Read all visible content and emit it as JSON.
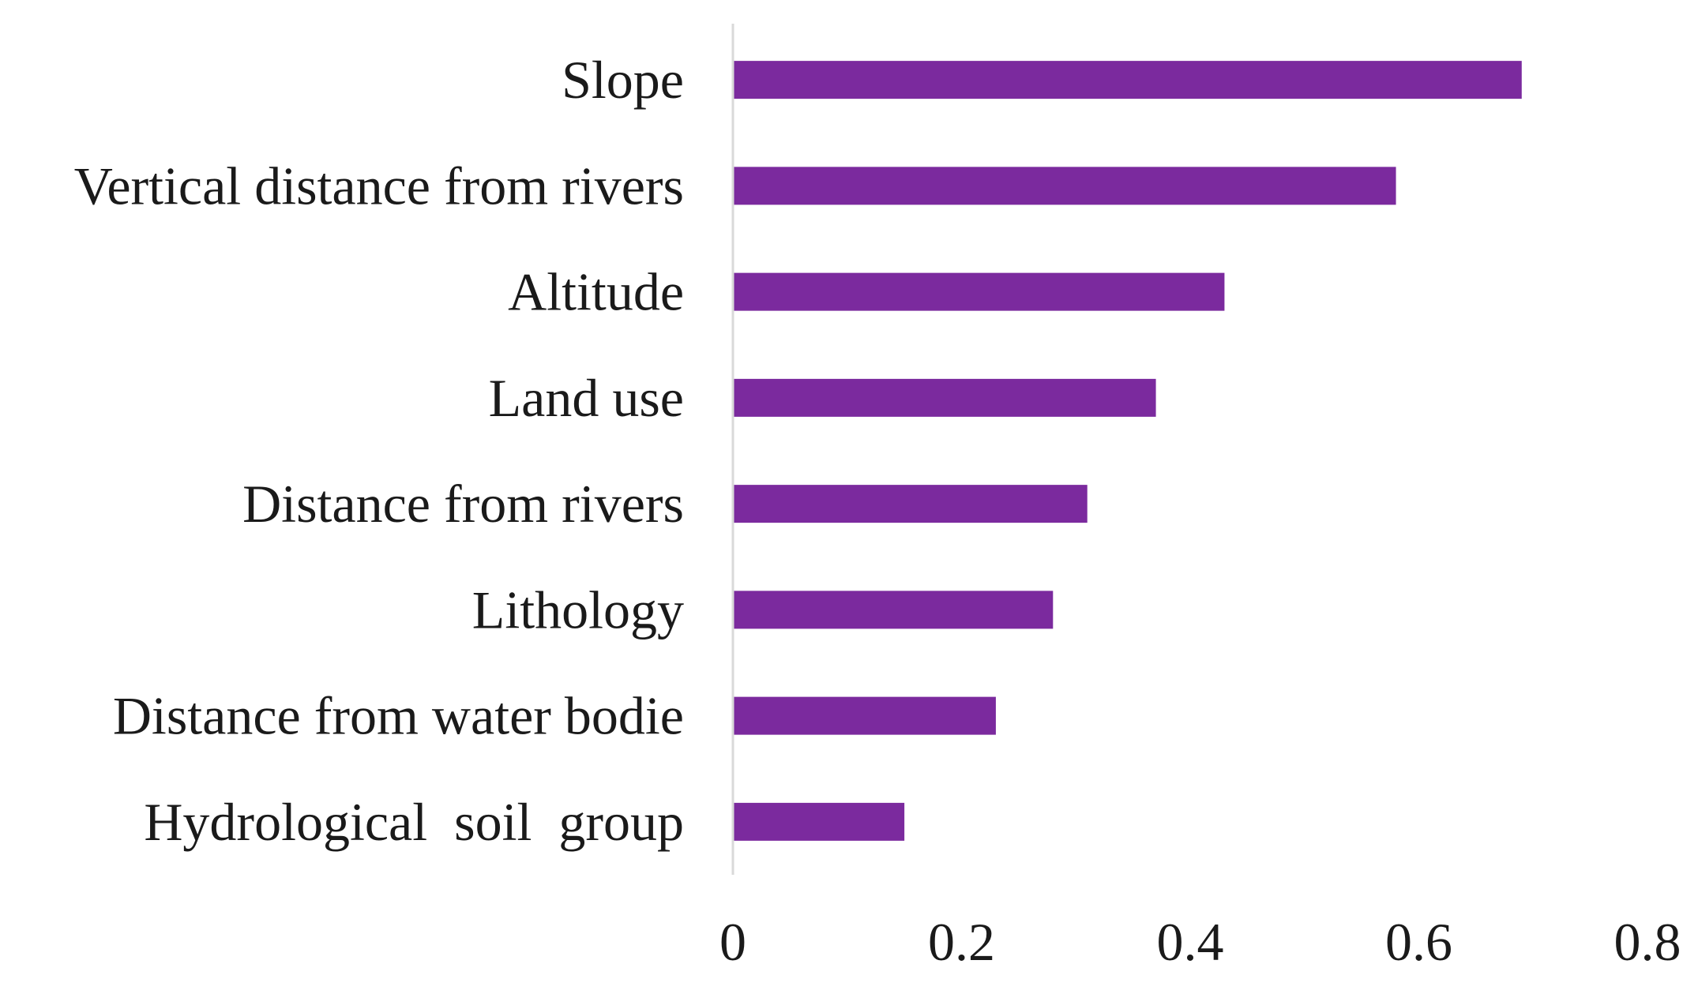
{
  "chart_data": {
    "type": "bar",
    "orientation": "horizontal",
    "categories": [
      "Slope",
      "Vertical distance from rivers",
      "Altitude",
      "Land use",
      "Distance from rivers",
      "Lithology",
      "Distance from water bodie",
      "Hydrological  soil  group"
    ],
    "values": [
      0.69,
      0.58,
      0.43,
      0.37,
      0.31,
      0.28,
      0.23,
      0.15
    ],
    "xlim": [
      0,
      0.8
    ],
    "xticks": [
      "0",
      "0.2",
      "0.4",
      "0.6",
      "0.8"
    ],
    "title": "",
    "xlabel": "",
    "ylabel": "",
    "grid": false,
    "legend": "none",
    "bar_color": "#7B2A9E",
    "axis_color": "#d9d9d9"
  }
}
